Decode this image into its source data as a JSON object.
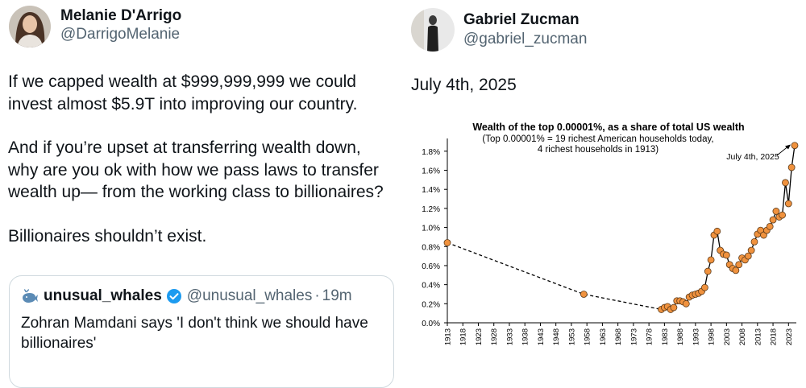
{
  "left_tweet": {
    "author_name": "Melanie D'Arrigo",
    "author_handle": "@DarrigoMelanie",
    "avatar_icon": "profile-photo",
    "paragraph1_line1": "If we capped wealth at $999,999,999 we could",
    "paragraph1_line2": "invest almost $5.9T into improving our country.",
    "paragraph2_line1": "And if you’re upset at transferring wealth down,",
    "paragraph2_line2": "why are you ok with how we pass laws to transfer",
    "paragraph2_line3": "wealth up— from the working class to billionaires?",
    "paragraph3": "Billionaires shouldn’t exist.",
    "quoted_tweet": {
      "author_name": "unusual_whales",
      "author_handle": "@unusual_whales",
      "separator": "·",
      "time": "19m",
      "text_line1": "Zohran Mamdani says 'I don't think we should have",
      "text_line2": "billionaires'",
      "logo_icon": "whale-icon",
      "verified_icon": "verified-badge-icon",
      "verified_color": "#1d9bf0"
    }
  },
  "right_tweet": {
    "author_name": "Gabriel Zucman",
    "author_handle": "@gabriel_zucman",
    "avatar_icon": "profile-photo",
    "text": "July 4th, 2025"
  },
  "chart_data": {
    "type": "line",
    "title": "Wealth of the top 0.00001%, as a share of total US wealth",
    "subtitle_line1": "(Top 0.00001% = 19 richest American households today,",
    "subtitle_line2": "4 richest households in 1913)",
    "annotation": "July 4th, 2025",
    "xlabel": "",
    "ylabel": "",
    "xlim": [
      1913,
      2025
    ],
    "ylim": [
      0,
      1.9
    ],
    "y_ticks": [
      "0.0%",
      "0.2%",
      "0.4%",
      "0.6%",
      "0.8%",
      "1.0%",
      "1.2%",
      "1.4%",
      "1.6%",
      "1.8%"
    ],
    "y_tick_values": [
      0,
      0.2,
      0.4,
      0.6,
      0.8,
      1.0,
      1.2,
      1.4,
      1.6,
      1.8
    ],
    "x_ticks": [
      "1913",
      "1918",
      "1923",
      "1928",
      "1933",
      "1938",
      "1943",
      "1948",
      "1953",
      "1958",
      "1963",
      "1968",
      "1973",
      "1978",
      "1983",
      "1988",
      "1993",
      "1998",
      "2003",
      "2008",
      "2013",
      "2018",
      "2023"
    ],
    "x_tick_values": [
      1913,
      1918,
      1923,
      1928,
      1933,
      1938,
      1943,
      1948,
      1953,
      1958,
      1963,
      1968,
      1973,
      1978,
      1983,
      1988,
      1993,
      1998,
      2003,
      2008,
      2013,
      2018,
      2023
    ],
    "grid": false,
    "marker_color": "#f0923e",
    "marker_edge_color": "#5a3a1a",
    "line_color": "#000000",
    "series": [
      {
        "style": "dashed",
        "x": [
          1913,
          1957,
          1982
        ],
        "y": [
          0.84,
          0.3,
          0.14
        ]
      },
      {
        "style": "solid",
        "x": [
          1982,
          1983,
          1984,
          1985,
          1986,
          1987,
          1988,
          1989,
          1990,
          1991,
          1992,
          1993,
          1994,
          1995,
          1996,
          1997,
          1998,
          1999,
          2000,
          2001,
          2002,
          2003,
          2004,
          2005,
          2006,
          2007,
          2008,
          2009,
          2010,
          2011,
          2012,
          2013,
          2014,
          2015,
          2016,
          2017,
          2018,
          2019,
          2020,
          2021,
          2022,
          2023,
          2024,
          2025
        ],
        "y": [
          0.14,
          0.16,
          0.17,
          0.14,
          0.16,
          0.23,
          0.23,
          0.22,
          0.2,
          0.27,
          0.29,
          0.3,
          0.31,
          0.33,
          0.37,
          0.54,
          0.66,
          0.92,
          0.96,
          0.76,
          0.72,
          0.71,
          0.61,
          0.57,
          0.55,
          0.61,
          0.68,
          0.66,
          0.7,
          0.76,
          0.85,
          0.93,
          0.97,
          0.92,
          0.97,
          1.01,
          1.08,
          1.17,
          1.11,
          1.13,
          1.47,
          1.25,
          1.63,
          1.86
        ]
      }
    ]
  }
}
